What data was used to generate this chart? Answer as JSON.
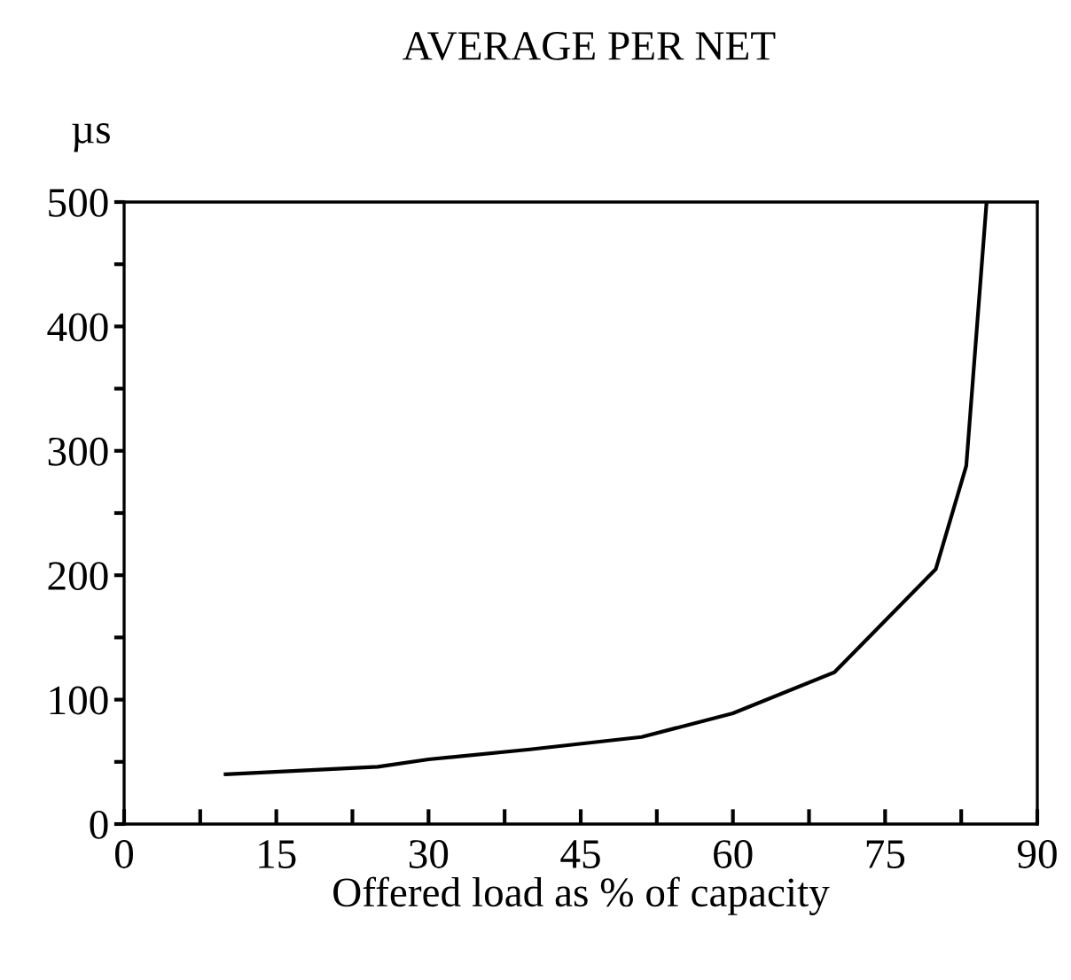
{
  "chart_data": {
    "type": "line",
    "title": "AVERAGE PER NET",
    "ylabel": "µs",
    "xlabel": "Offered load as % of capacity",
    "x": [
      10,
      25,
      30,
      40,
      51,
      60,
      70,
      80,
      83,
      85
    ],
    "series": [
      {
        "color": "#000000",
        "values": [
          40,
          46,
          52,
          60,
          70,
          89,
          122,
          205,
          288,
          500
        ]
      }
    ],
    "xlim": [
      0,
      90
    ],
    "ylim": [
      0,
      500
    ],
    "xticks": [
      0,
      {
        "value": 7.5,
        "label": null
      },
      15,
      {
        "value": 22.5,
        "label": null
      },
      30,
      {
        "value": 37.5,
        "label": null
      },
      45,
      {
        "value": 52.5,
        "label": null
      },
      60,
      {
        "value": 67.5,
        "label": null
      },
      75,
      {
        "value": 82.5,
        "label": null
      },
      90
    ],
    "yticks": [
      0,
      {
        "value": 50,
        "label": null
      },
      100,
      {
        "value": 150,
        "label": null
      },
      200,
      {
        "value": 250,
        "label": null
      },
      300,
      {
        "value": 350,
        "label": null
      },
      400,
      {
        "value": 450,
        "label": null
      },
      500
    ],
    "grid": false,
    "legend": false,
    "marker": "none",
    "line_style": "solid"
  }
}
